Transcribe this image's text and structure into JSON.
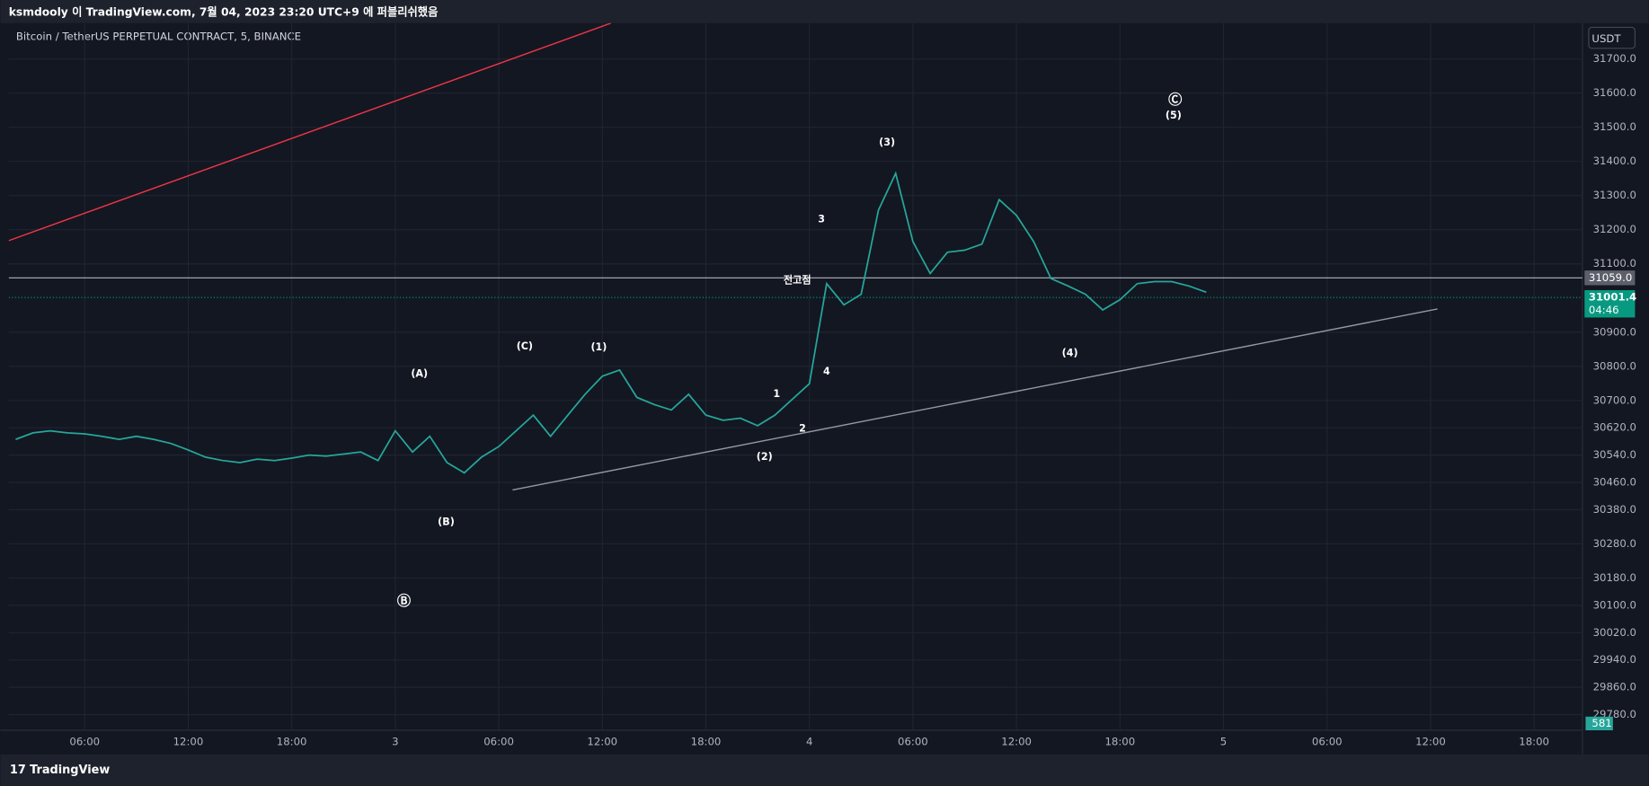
{
  "header": {
    "publish_note": "ksmdooly 이 TradingView.com, 7월 04, 2023 23:20 UTC+9 에 퍼블리쉬했음",
    "symbol": "Bitcoin / TetherUS PERPETUAL CONTRACT, 5, BINANCE",
    "currency": "USDT"
  },
  "footer": {
    "brand": "TradingView"
  },
  "chart_data": {
    "type": "line",
    "color": "#26a69a",
    "grid": true,
    "x": [
      2,
      3,
      4,
      5,
      6,
      7,
      8,
      9,
      10,
      11,
      12,
      13,
      14,
      15,
      16,
      17,
      18,
      19,
      20,
      21,
      22,
      23,
      24,
      25,
      26,
      27,
      28,
      29,
      30,
      31,
      32,
      33,
      34,
      35,
      36,
      37,
      38,
      39,
      40,
      41,
      42,
      43,
      44,
      45,
      46,
      47,
      48,
      49,
      50,
      51,
      52,
      53,
      54,
      55,
      56,
      57,
      58,
      59,
      60,
      61,
      62,
      63,
      64,
      65,
      66,
      67,
      68,
      69,
      70,
      71
    ],
    "values": [
      30586,
      30605,
      30611,
      30605,
      30602,
      30595,
      30586,
      30595,
      30586,
      30574,
      30555,
      30534,
      30524,
      30518,
      30528,
      30524,
      30531,
      30540,
      30537,
      30543,
      30549,
      30524,
      30611,
      30549,
      30595,
      30518,
      30488,
      30534,
      30565,
      30611,
      30657,
      30595,
      30657,
      30718,
      30771,
      30789,
      30709,
      30688,
      30672,
      30718,
      30657,
      30642,
      30648,
      30626,
      30657,
      30703,
      30749,
      31042,
      30980,
      31011,
      31257,
      31365,
      31165,
      31072,
      31134,
      31140,
      31158,
      31288,
      31242,
      31165,
      31057,
      31035,
      31011,
      30965,
      30995,
      31042,
      31048,
      31048,
      31035,
      31017
    ],
    "xlim": [
      1.6,
      92.8
    ],
    "xticks": [
      {
        "value": 6,
        "label": "06:00"
      },
      {
        "value": 12,
        "label": "12:00"
      },
      {
        "value": 18,
        "label": "18:00"
      },
      {
        "value": 24,
        "label": "3"
      },
      {
        "value": 30,
        "label": "06:00"
      },
      {
        "value": 36,
        "label": "12:00"
      },
      {
        "value": 42,
        "label": "18:00"
      },
      {
        "value": 48,
        "label": "4"
      },
      {
        "value": 54,
        "label": "06:00"
      },
      {
        "value": 60,
        "label": "12:00"
      },
      {
        "value": 66,
        "label": "18:00"
      },
      {
        "value": 72,
        "label": "5"
      },
      {
        "value": 78,
        "label": "06:00"
      },
      {
        "value": 84,
        "label": "12:00"
      },
      {
        "value": 90,
        "label": "18:00"
      }
    ],
    "ylim": [
      29734,
      31805
    ],
    "yticks": [
      {
        "value": 31700,
        "label": "31700.0"
      },
      {
        "value": 31600,
        "label": "31600.0"
      },
      {
        "value": 31500,
        "label": "31500.0"
      },
      {
        "value": 31400,
        "label": "31400.0"
      },
      {
        "value": 31300,
        "label": "31300.0"
      },
      {
        "value": 31200,
        "label": "31200.0"
      },
      {
        "value": 31100,
        "label": "31100.0"
      },
      {
        "value": 30900,
        "label": "30900.0"
      },
      {
        "value": 30800,
        "label": "30800.0"
      },
      {
        "value": 30700,
        "label": "30700.0"
      },
      {
        "value": 30620,
        "label": "30620.0"
      },
      {
        "value": 30540,
        "label": "30540.0"
      },
      {
        "value": 30460,
        "label": "30460.0"
      },
      {
        "value": 30380,
        "label": "30380.0"
      },
      {
        "value": 30280,
        "label": "30280.0"
      },
      {
        "value": 30180,
        "label": "30180.0"
      },
      {
        "value": 30100,
        "label": "30100.0"
      },
      {
        "value": 30020,
        "label": "30020.0"
      },
      {
        "value": 29940,
        "label": "29940.0"
      },
      {
        "value": 29860,
        "label": "29860.0"
      },
      {
        "value": 29780,
        "label": "29780.0"
      }
    ],
    "level": {
      "value": 31059,
      "label": "31059.0",
      "color": "#b2b5be"
    },
    "last_price": {
      "value": 31001.4,
      "label": "31001.4",
      "countdown": "04:46",
      "color": "#089981"
    },
    "volume_tag": 581,
    "trendlines": [
      {
        "color": "#f23645",
        "x": [
          1.6,
          36.5
        ],
        "y": [
          31168,
          31805
        ]
      },
      {
        "color": "#9598a1",
        "x": [
          30.8,
          84.4
        ],
        "y": [
          30438,
          30968
        ]
      }
    ],
    "annotations": [
      {
        "text": "(A)",
        "x": 25.4,
        "y": 30777
      },
      {
        "text": "Ⓑ",
        "x": 24.5,
        "y": 30112
      },
      {
        "text": "(B)",
        "x": 26.95,
        "y": 30343
      },
      {
        "text": "(C)",
        "x": 31.5,
        "y": 30857
      },
      {
        "text": "(1)",
        "x": 35.8,
        "y": 30854
      },
      {
        "text": "(2)",
        "x": 45.4,
        "y": 30534
      },
      {
        "text": "1",
        "x": 46.1,
        "y": 30718
      },
      {
        "text": "2",
        "x": 47.6,
        "y": 30617
      },
      {
        "text": "3",
        "x": 48.7,
        "y": 31229
      },
      {
        "text": "4",
        "x": 49.0,
        "y": 30783
      },
      {
        "text": "(3)",
        "x": 52.5,
        "y": 31454
      },
      {
        "text": "Ⓒ",
        "x": 69.2,
        "y": 31580
      },
      {
        "text": "(5)",
        "x": 69.1,
        "y": 31534
      },
      {
        "text": "(4)",
        "x": 63.1,
        "y": 30837
      },
      {
        "text": "전고점",
        "x": 47.3,
        "y": 31051
      }
    ]
  }
}
